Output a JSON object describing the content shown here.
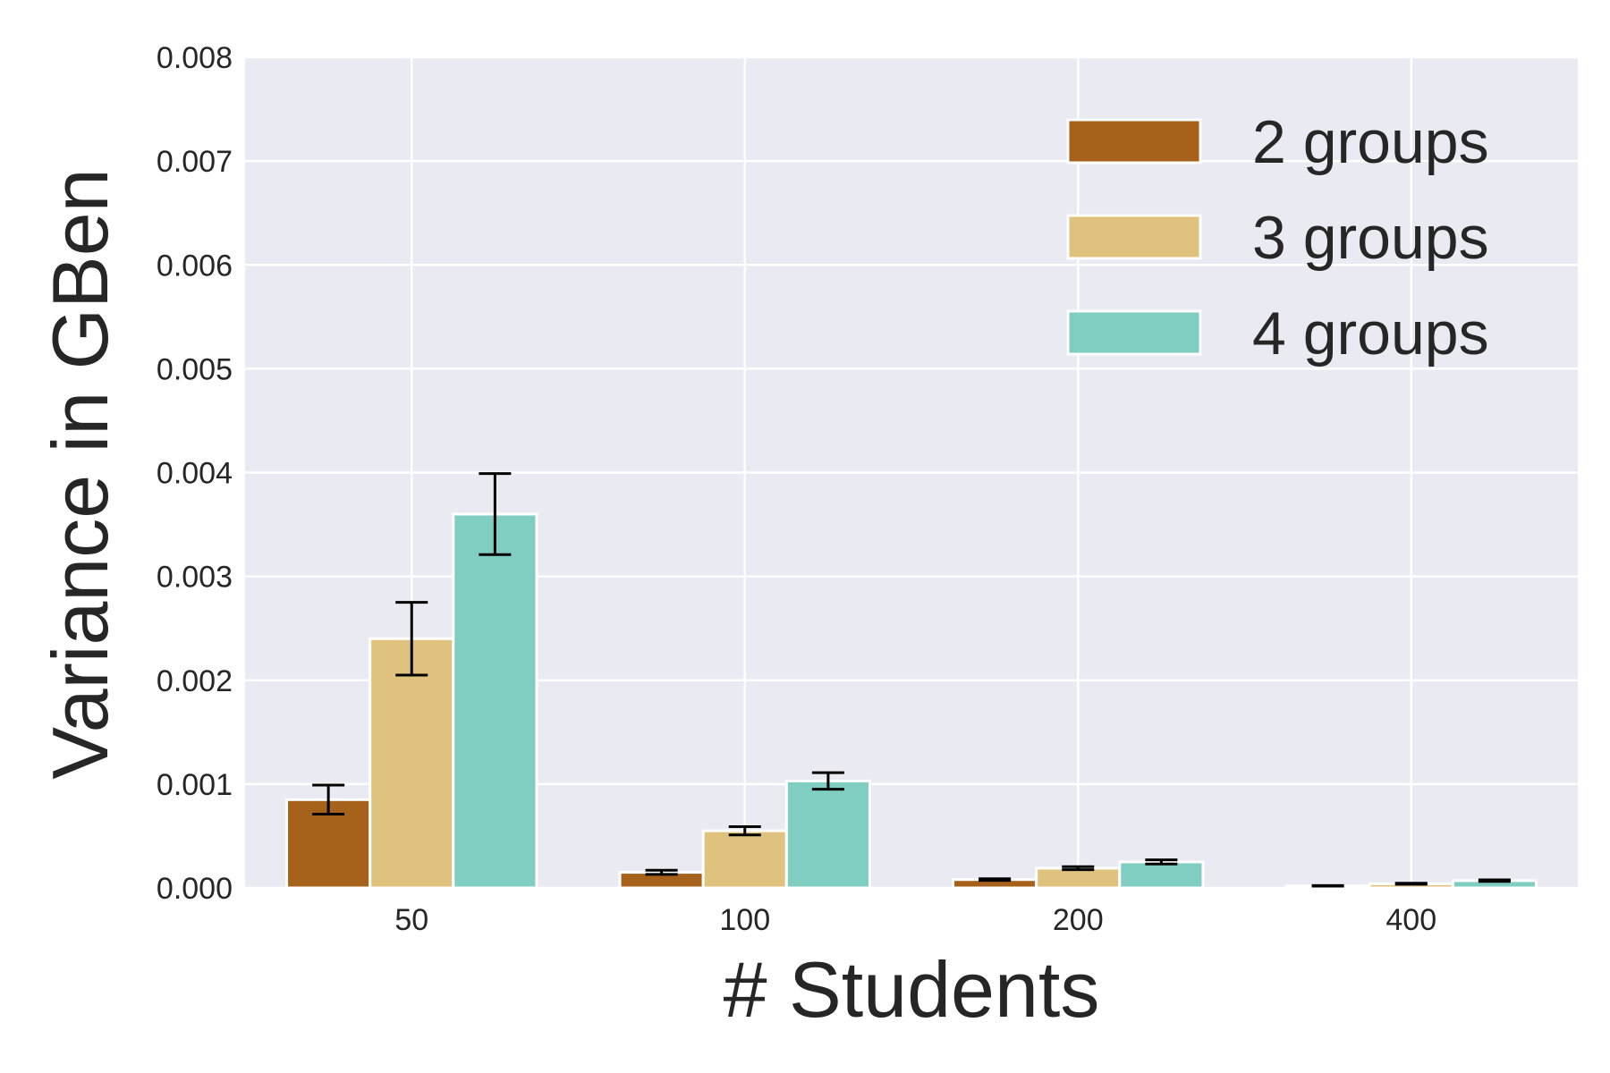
{
  "chart_data": {
    "type": "bar",
    "title": "",
    "xlabel": "# Students",
    "ylabel": "Variance in GBen",
    "categories": [
      "50",
      "100",
      "200",
      "400"
    ],
    "y_ticks": [
      "0.000",
      "0.001",
      "0.002",
      "0.003",
      "0.004",
      "0.005",
      "0.006",
      "0.007",
      "0.008"
    ],
    "ylim": [
      0,
      0.008
    ],
    "grid": true,
    "legend_position": "top-right",
    "series": [
      {
        "name": "2 groups",
        "color": "#A6611A",
        "values": [
          0.00085,
          0.00015,
          8e-05,
          2e-05
        ],
        "errors": [
          0.00014,
          2e-05,
          8e-06,
          3e-06
        ]
      },
      {
        "name": "3 groups",
        "color": "#DFC27D",
        "values": [
          0.0024,
          0.00055,
          0.00019,
          4e-05
        ],
        "errors": [
          0.00035,
          4e-05,
          1.5e-05,
          5e-06
        ]
      },
      {
        "name": "4 groups",
        "color": "#80CDC1",
        "values": [
          0.0036,
          0.00103,
          0.00025,
          7e-05
        ],
        "errors": [
          0.00039,
          8e-05,
          2e-05,
          8e-06
        ]
      }
    ]
  }
}
